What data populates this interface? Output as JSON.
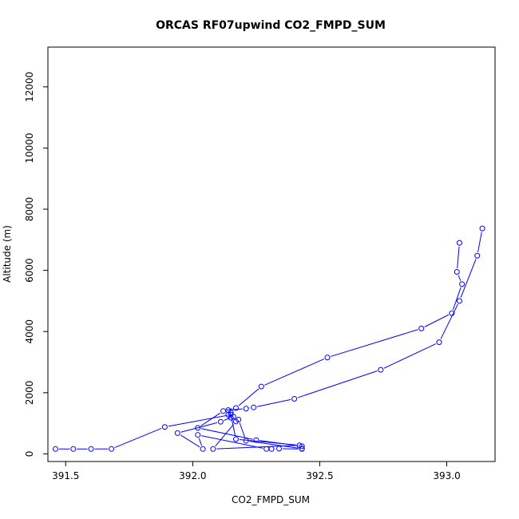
{
  "chart_data": {
    "type": "line",
    "title": "ORCAS RF07upwind CO2_FMPD_SUM",
    "xlabel": "CO2_FMPD_SUM",
    "ylabel": "Altitude (m)",
    "xlim": [
      391.43,
      393.19
    ],
    "ylim": [
      -250,
      13300
    ],
    "xticks": [
      391.5,
      392.0,
      392.5,
      393.0
    ],
    "xtick_labels": [
      "391.5",
      "392.0",
      "392.5",
      "393.0"
    ],
    "yticks": [
      0,
      2000,
      4000,
      6000,
      8000,
      10000,
      12000
    ],
    "ytick_labels": [
      "0",
      "2000",
      "4000",
      "6000",
      "8000",
      "10000",
      "12000"
    ],
    "grid": false,
    "legend": "none",
    "series_color": "#0000ff",
    "marker": "open-circle",
    "series": [
      {
        "x": [
          393.05,
          393.04,
          393.06,
          393.02,
          392.9,
          392.53,
          392.27,
          392.17,
          392.12,
          392.02,
          392.25,
          392.43,
          392.43,
          392.34,
          392.31,
          392.29,
          392.02,
          392.04,
          391.94,
          392.11,
          392.16,
          392.14,
          392.15,
          392.14,
          392.21,
          392.24,
          392.4,
          392.74,
          392.97,
          393.05,
          393.12,
          393.14
        ],
        "y": [
          6900,
          5950,
          5550,
          4600,
          4100,
          3150,
          2200,
          1500,
          1400,
          850,
          450,
          250,
          160,
          170,
          160,
          160,
          620,
          160,
          680,
          1050,
          1220,
          1280,
          1350,
          1430,
          1480,
          1520,
          1800,
          2750,
          3650,
          5000,
          6480,
          7370
        ]
      },
      {
        "x": [
          391.46,
          391.53,
          391.6,
          391.68,
          391.89,
          392.15,
          392.17,
          392.42,
          392.08,
          392.17,
          392.15,
          392.18,
          392.21,
          392.43
        ],
        "y": [
          160,
          160,
          160,
          160,
          880,
          1280,
          480,
          280,
          160,
          1060,
          1180,
          1120,
          430,
          170
        ]
      }
    ]
  }
}
